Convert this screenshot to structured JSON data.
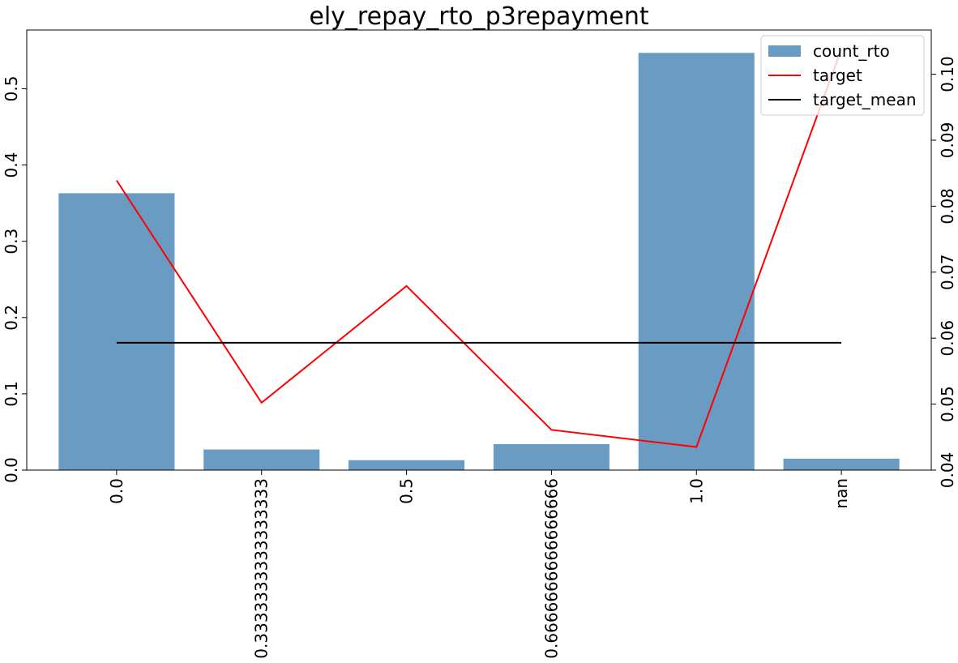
{
  "chart_data": {
    "type": "bar",
    "title": "ely_repay_rto_p3repayment",
    "categories": [
      "0.0",
      "0.3333333333333333",
      "0.5",
      "0.6666666666666666",
      "1.0",
      "nan"
    ],
    "series": [
      {
        "name": "count_rto",
        "type": "bar",
        "axis": "left",
        "color": "#6a9bc3",
        "values": [
          0.363,
          0.027,
          0.013,
          0.034,
          0.547,
          0.015
        ]
      },
      {
        "name": "target",
        "type": "line",
        "axis": "right",
        "color": "#ff0000",
        "values": [
          0.0839,
          0.0502,
          0.0679,
          0.0461,
          0.0435,
          0.1038
        ]
      },
      {
        "name": "target_mean",
        "type": "line",
        "axis": "right",
        "color": "#000000",
        "values": [
          0.0593,
          0.0593,
          0.0593,
          0.0593,
          0.0593,
          0.0593
        ]
      }
    ],
    "y_left": {
      "ylim": [
        0,
        0.577
      ],
      "ticks": [
        0.0,
        0.1,
        0.2,
        0.3,
        0.4,
        0.5
      ],
      "tick_labels": [
        "0.0",
        "0.1",
        "0.2",
        "0.3",
        "0.4",
        "0.5"
      ]
    },
    "y_right": {
      "ylim": [
        0.04,
        0.1067
      ],
      "ticks": [
        0.04,
        0.05,
        0.06,
        0.07,
        0.08,
        0.09,
        0.1
      ],
      "tick_labels": [
        "0.04",
        "0.05",
        "0.06",
        "0.07",
        "0.08",
        "0.09",
        "0.10"
      ]
    },
    "xlabel": "",
    "ylabel": "",
    "grid": false,
    "legend_position": "top-right"
  }
}
